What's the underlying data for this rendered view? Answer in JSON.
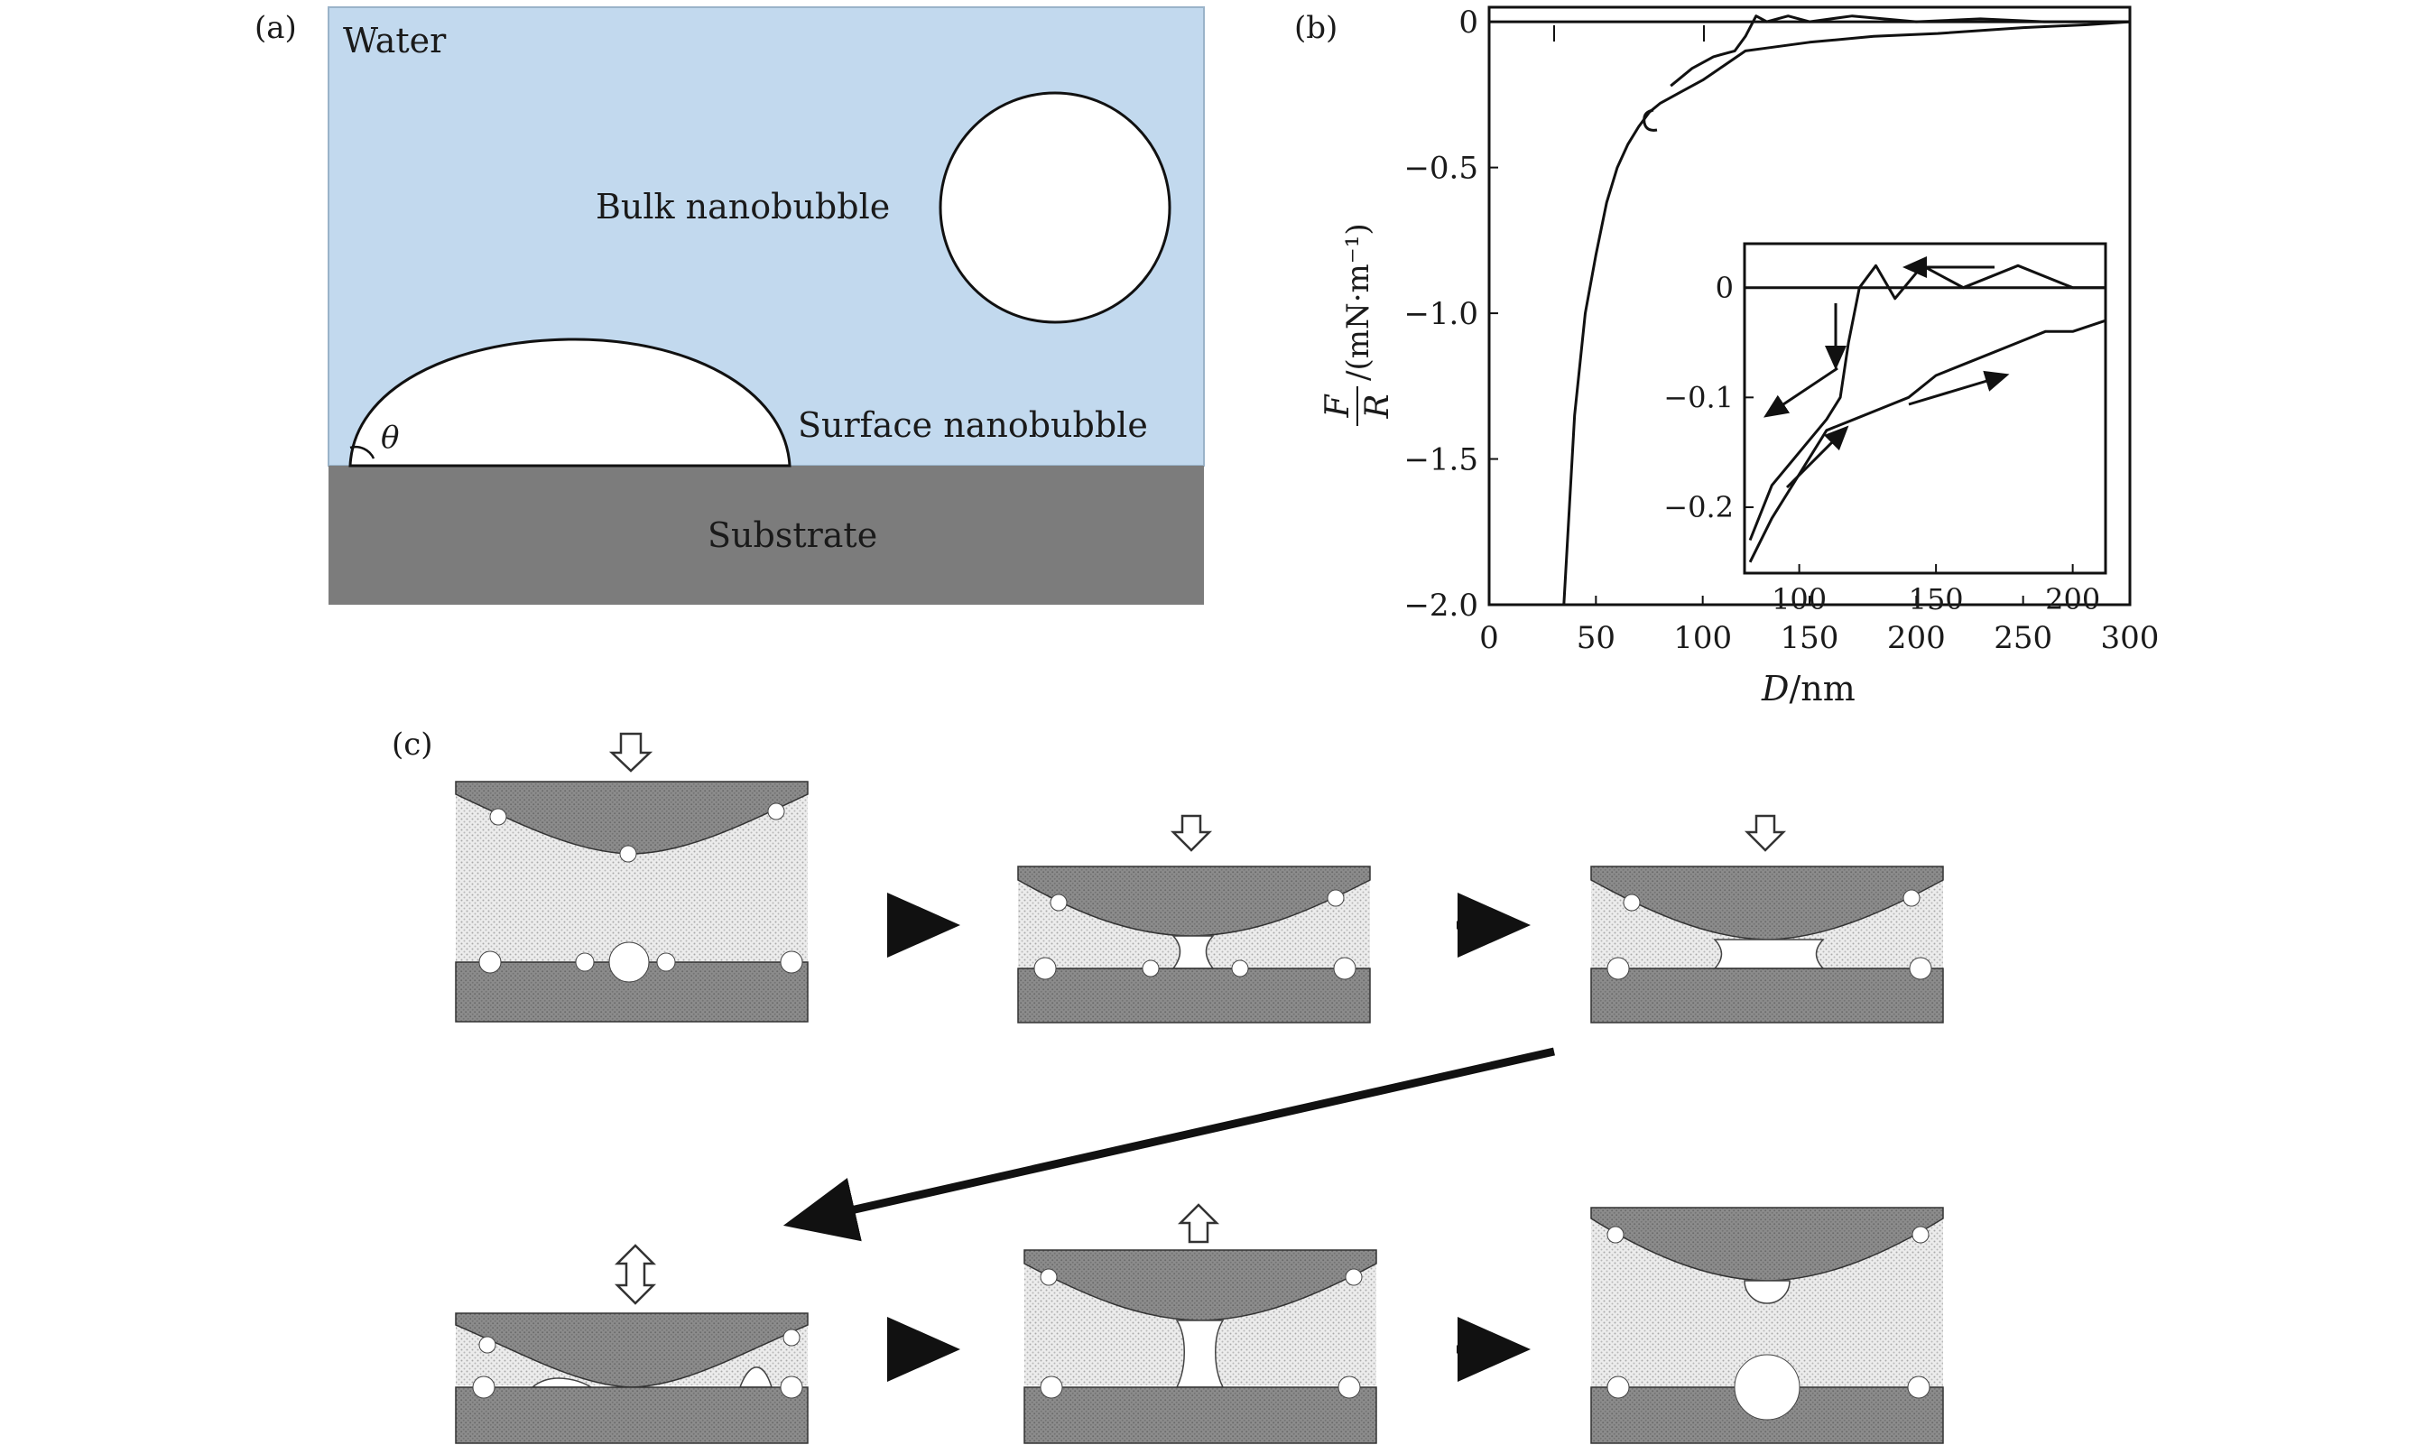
{
  "panels": {
    "a": {
      "label": "(a)",
      "water_label": "Water",
      "bulk_label": "Bulk nanobubble",
      "surface_label": "Surface nanobubble",
      "substrate_label": "Substrate",
      "theta_label": "θ",
      "colors": {
        "water": "#c2d9ee",
        "substrate": "#7c7c7c",
        "bubble": "#ffffff"
      }
    },
    "b": {
      "label": "(b)"
    },
    "c": {
      "label": "(c)"
    }
  },
  "chart_data": [
    {
      "type": "line",
      "xlabel_var": "D",
      "xlabel_unit": "/nm",
      "ylabel_num": "F",
      "ylabel_den": "R",
      "ylabel_unit": "/(mN·m⁻¹)",
      "xlim": [
        0,
        300
      ],
      "ylim": [
        -2.0,
        0.05
      ],
      "xticks": [
        0,
        50,
        100,
        150,
        200,
        250,
        300
      ],
      "yticks": [
        0,
        -0.5,
        -1.0,
        -1.5,
        -2.0
      ],
      "xtick_labels": [
        "0",
        "50",
        "100",
        "150",
        "200",
        "250",
        "300"
      ],
      "ytick_labels": [
        "0",
        "−0.5",
        "−1.0",
        "−1.5",
        "−2.0"
      ],
      "series": [
        {
          "x": [
            0,
            300
          ],
          "values": [
            0,
            0
          ]
        },
        {
          "x": [
            35,
            40,
            45,
            50,
            55,
            60,
            65,
            70,
            75,
            80,
            90,
            100,
            110,
            120,
            130,
            150,
            180,
            210,
            250,
            280,
            300
          ],
          "values": [
            -2.0,
            -1.35,
            -1.0,
            -0.8,
            -0.62,
            -0.5,
            -0.42,
            -0.36,
            -0.31,
            -0.28,
            -0.24,
            -0.2,
            -0.15,
            -0.1,
            -0.09,
            -0.07,
            -0.05,
            -0.04,
            -0.02,
            -0.01,
            0
          ]
        },
        {
          "x": [
            85,
            95,
            105,
            115,
            120,
            125,
            130,
            140,
            150,
            170,
            200,
            230,
            260,
            300
          ],
          "values": [
            -0.22,
            -0.16,
            -0.12,
            -0.1,
            -0.05,
            0.02,
            0.0,
            0.02,
            0.0,
            0.02,
            0.0,
            0.01,
            0.0,
            0.0
          ]
        }
      ]
    },
    {
      "type": "line",
      "xlim": [
        80,
        212
      ],
      "ylim": [
        -0.26,
        0.04
      ],
      "xticks": [
        100,
        150,
        200
      ],
      "yticks": [
        0,
        -0.1,
        -0.2
      ],
      "xtick_labels": [
        "100",
        "150",
        "200"
      ],
      "ytick_labels": [
        "0",
        "−0.1",
        "−0.2"
      ],
      "series": [
        {
          "x": [
            80,
            212
          ],
          "values": [
            0,
            0
          ]
        },
        {
          "x": [
            82,
            90,
            100,
            110,
            115,
            118,
            122,
            128,
            135,
            145,
            160,
            180,
            200,
            212
          ],
          "values": [
            -0.23,
            -0.18,
            -0.15,
            -0.12,
            -0.1,
            -0.05,
            0.0,
            0.02,
            -0.01,
            0.02,
            0.0,
            0.02,
            0.0,
            0.0
          ]
        },
        {
          "x": [
            82,
            90,
            100,
            110,
            120,
            130,
            140,
            150,
            160,
            170,
            180,
            190,
            200,
            212
          ],
          "values": [
            -0.25,
            -0.21,
            -0.17,
            -0.13,
            -0.12,
            -0.11,
            -0.1,
            -0.08,
            -0.07,
            -0.06,
            -0.05,
            -0.04,
            -0.04,
            -0.03
          ]
        }
      ]
    }
  ]
}
